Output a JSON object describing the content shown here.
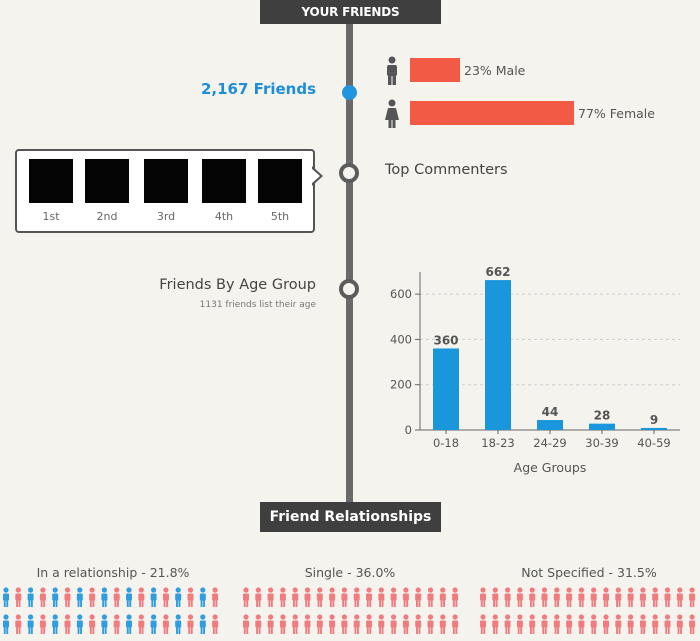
{
  "header": {
    "title": "YOUR FRIENDS"
  },
  "friends": {
    "count": "2,167 Friends"
  },
  "gender": {
    "male": {
      "label": "23% Male",
      "percent": 23,
      "icon": "male-person-icon"
    },
    "female": {
      "label": "77% Female",
      "percent": 77,
      "icon": "female-person-icon"
    },
    "bar_color": "#f25a46"
  },
  "top_commenters": {
    "title": "Top Commenters",
    "ranks": [
      "1st",
      "2nd",
      "3rd",
      "4th",
      "5th"
    ]
  },
  "age_group": {
    "title": "Friends By Age Group",
    "subtitle": "1131 friends list their age"
  },
  "chart_data": {
    "type": "bar",
    "categories": [
      "0-18",
      "18-23",
      "24-29",
      "30-39",
      "40-59"
    ],
    "values": [
      360,
      662,
      44,
      28,
      9
    ],
    "data_labels": [
      "360",
      "662",
      "44",
      "28",
      "9"
    ],
    "xlabel": "Age Groups",
    "ylabel": "",
    "ylim": [
      0,
      680
    ],
    "yticks": [
      0,
      200,
      400,
      600
    ],
    "grid": true,
    "bar_color": "#1a97dc"
  },
  "relationships": {
    "title": "Friend Relationships",
    "groups": [
      {
        "label": "In a relationship - 21.8%",
        "color": "#2f9de0",
        "alt_color": "#f07c80"
      },
      {
        "label": "Single - 36.0%",
        "color": "#f07c80"
      },
      {
        "label": "Not Specified - 31.5%",
        "color": "#f07c80"
      }
    ]
  }
}
